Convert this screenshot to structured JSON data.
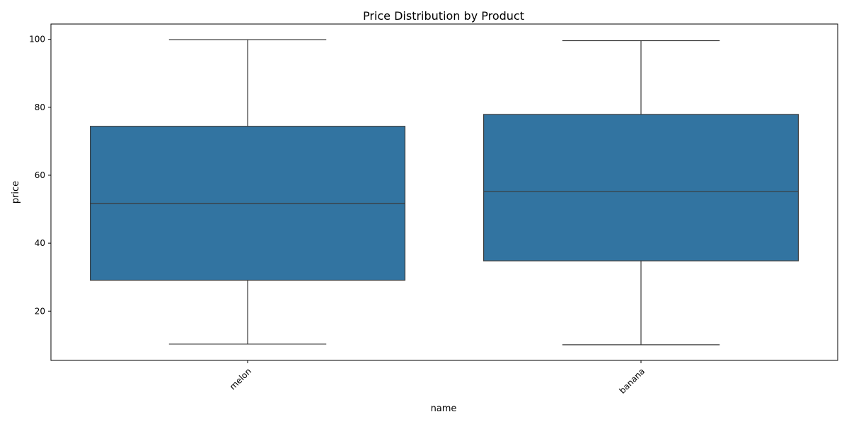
{
  "chart_data": {
    "type": "box",
    "title": "Price Distribution by Product",
    "xlabel": "name",
    "ylabel": "price",
    "ylim": [
      5.5,
      104.5
    ],
    "yticks": [
      20,
      40,
      60,
      80,
      100
    ],
    "grid": false,
    "legend": "none",
    "box_color": "#3274a1",
    "line_color": "#3a3a3a",
    "categories": [
      "melon",
      "banana"
    ],
    "boxes": [
      {
        "category": "melon",
        "min": 10.3,
        "q1": 29.1,
        "median": 51.7,
        "q3": 74.4,
        "max": 99.9
      },
      {
        "category": "banana",
        "min": 10.1,
        "q1": 34.8,
        "median": 55.2,
        "q3": 77.9,
        "max": 99.6
      }
    ]
  }
}
